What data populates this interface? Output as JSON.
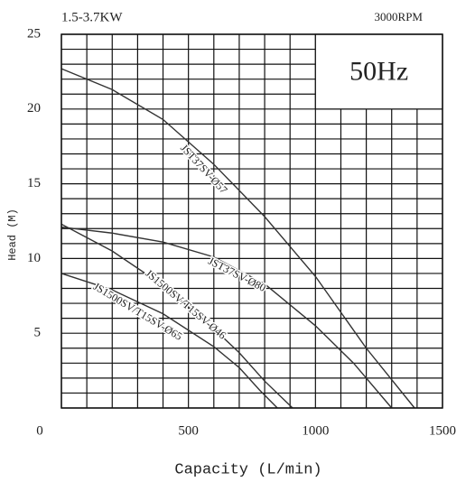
{
  "chart_data": {
    "type": "line",
    "title": "1.5-3.7KW",
    "subtitle": "3000RPM",
    "annotation": "50Hz",
    "xlabel": "Capacity (L/min)",
    "ylabel": "Head (M)",
    "xlim": [
      0,
      1500
    ],
    "ylim": [
      0,
      25
    ],
    "xticks": [
      0,
      500,
      1000,
      1500
    ],
    "yticks": [
      5,
      10,
      15,
      20,
      25
    ],
    "grid": true,
    "minor_grid": {
      "x": 100,
      "y": 1
    },
    "series": [
      {
        "name": "JST37SV-Ø57",
        "color": "#333333",
        "x": [
          0,
          200,
          400,
          600,
          800,
          1000,
          1200,
          1390
        ],
        "values": [
          22.7,
          21.3,
          19.3,
          16.3,
          12.8,
          8.8,
          4.0,
          0
        ]
      },
      {
        "name": "JST37SV-Ø80",
        "color": "#333333",
        "x": [
          0,
          200,
          400,
          600,
          800,
          1000,
          1150,
          1300
        ],
        "values": [
          12.1,
          11.7,
          11.1,
          10.1,
          8.3,
          5.5,
          3.0,
          0
        ]
      },
      {
        "name": "JS1500SV/T15SV-Ø46",
        "color": "#333333",
        "x": [
          0,
          200,
          400,
          600,
          700,
          800,
          910
        ],
        "values": [
          12.3,
          10.5,
          8.2,
          5.3,
          3.7,
          1.8,
          0
        ]
      },
      {
        "name": "JS1500SV/T15SV-Ø65",
        "color": "#333333",
        "x": [
          0,
          200,
          400,
          600,
          700,
          780,
          850
        ],
        "values": [
          9.0,
          7.9,
          6.3,
          4.1,
          2.7,
          1.2,
          0
        ]
      }
    ]
  }
}
